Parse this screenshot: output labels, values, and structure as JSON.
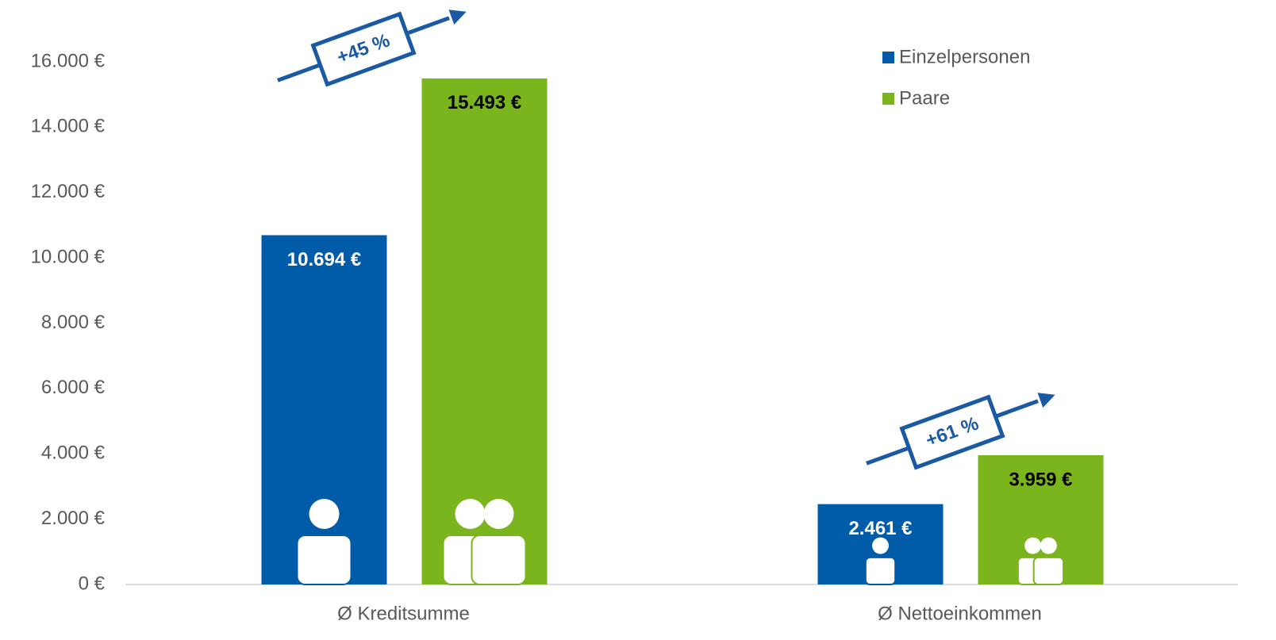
{
  "chart_data": {
    "type": "bar",
    "categories": [
      "Ø Kreditsumme",
      "Ø Nettoeinkommen"
    ],
    "series": [
      {
        "name": "Einzelpersonen",
        "color": "#005ca9",
        "values": [
          10694,
          2461
        ],
        "value_labels": [
          "10.694 €",
          "2.461 €"
        ]
      },
      {
        "name": "Paare",
        "color": "#7ab51d",
        "values": [
          15493,
          3959
        ],
        "value_labels": [
          "15.493 €",
          "3.959 €"
        ]
      }
    ],
    "ylim": [
      0,
      16000
    ],
    "yticks": [
      {
        "value": 0,
        "label": "0 €"
      },
      {
        "value": 2000,
        "label": "2.000 €"
      },
      {
        "value": 4000,
        "label": "4.000 €"
      },
      {
        "value": 6000,
        "label": "6.000 €"
      },
      {
        "value": 8000,
        "label": "8.000 €"
      },
      {
        "value": 10000,
        "label": "10.000 €"
      },
      {
        "value": 12000,
        "label": "12.000 €"
      },
      {
        "value": 14000,
        "label": "14.000 €"
      },
      {
        "value": 16000,
        "label": "16.000 €"
      }
    ],
    "annotations": [
      "+45 %",
      "+61 %"
    ],
    "legend": "top-right"
  }
}
